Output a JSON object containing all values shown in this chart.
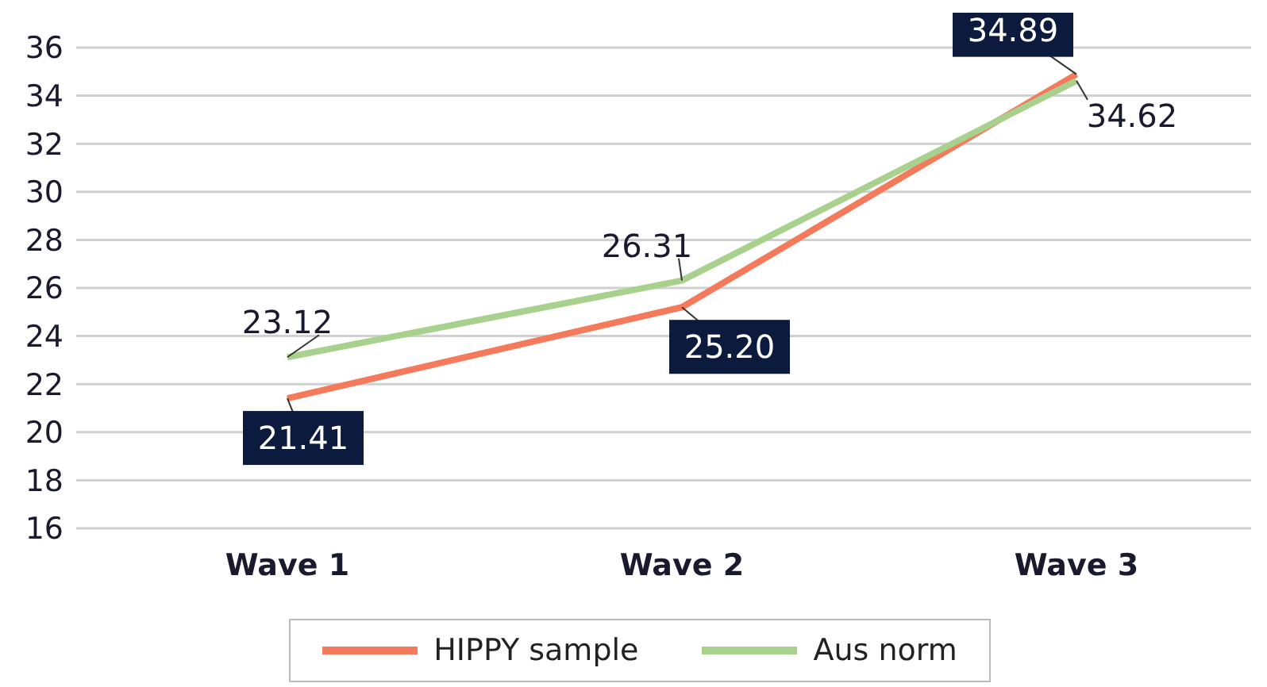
{
  "chart_data": {
    "type": "line",
    "categories": [
      "Wave 1",
      "Wave 2",
      "Wave 3"
    ],
    "series": [
      {
        "name": "HIPPY sample",
        "color": "#f47a5b",
        "values": [
          21.41,
          25.2,
          34.89
        ],
        "value_labels": [
          "21.41",
          "25.20",
          "34.89"
        ]
      },
      {
        "name": "Aus norm",
        "color": "#a9d18e",
        "values": [
          23.12,
          26.31,
          34.62
        ],
        "value_labels": [
          "23.12",
          "26.31",
          "34.62"
        ]
      }
    ],
    "ylim": [
      16,
      36
    ],
    "yticks": [
      16,
      18,
      20,
      22,
      24,
      26,
      28,
      30,
      32,
      34,
      36
    ],
    "grid": "y",
    "legend": "bottom",
    "marker": "none",
    "line_style": "solid"
  }
}
